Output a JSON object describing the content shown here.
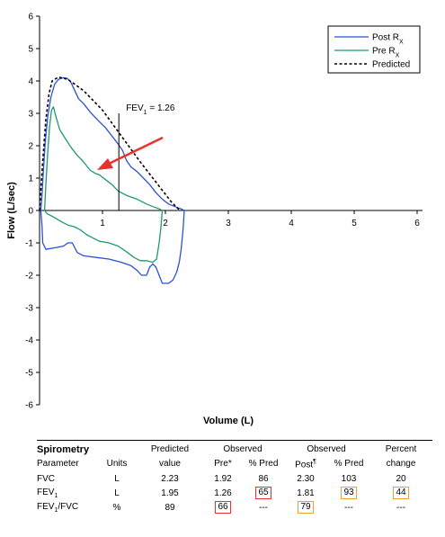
{
  "chart_data": {
    "type": "line",
    "title": "",
    "xlabel": "Volume (L)",
    "ylabel": "Flow (L/sec)",
    "xlim": [
      0,
      6
    ],
    "ylim": [
      -6,
      6
    ],
    "xticks": [
      "0",
      "1",
      "2",
      "3",
      "4",
      "5",
      "6"
    ],
    "yticks": [
      "6",
      "5",
      "4",
      "3",
      "2",
      "1",
      "0",
      "-1",
      "-2",
      "-3",
      "-4",
      "-5",
      "-6"
    ],
    "grid": false,
    "legend_position": "top-right",
    "series": [
      {
        "name": "Post Rx",
        "name_main": "Post R",
        "name_sub": "X",
        "color": "#2a52d6",
        "style": "solid",
        "points": [
          [
            0.02,
            0.0
          ],
          [
            0.04,
            0.5
          ],
          [
            0.06,
            1.2
          ],
          [
            0.09,
            2.1
          ],
          [
            0.13,
            2.9
          ],
          [
            0.18,
            3.5
          ],
          [
            0.24,
            3.9
          ],
          [
            0.3,
            4.05
          ],
          [
            0.38,
            4.1
          ],
          [
            0.44,
            4.08
          ],
          [
            0.5,
            3.95
          ],
          [
            0.56,
            3.7
          ],
          [
            0.62,
            3.45
          ],
          [
            0.7,
            3.3
          ],
          [
            0.8,
            3.05
          ],
          [
            0.92,
            2.8
          ],
          [
            1.05,
            2.55
          ],
          [
            1.15,
            2.3
          ],
          [
            1.25,
            2.05
          ],
          [
            1.32,
            1.85
          ],
          [
            1.38,
            1.55
          ],
          [
            1.45,
            1.35
          ],
          [
            1.55,
            1.2
          ],
          [
            1.65,
            1.0
          ],
          [
            1.75,
            0.8
          ],
          [
            1.85,
            0.55
          ],
          [
            1.95,
            0.35
          ],
          [
            2.05,
            0.2
          ],
          [
            2.15,
            0.12
          ],
          [
            2.25,
            0.05
          ],
          [
            2.3,
            0.0
          ],
          [
            2.28,
            -0.6
          ],
          [
            2.25,
            -1.2
          ],
          [
            2.22,
            -1.6
          ],
          [
            2.18,
            -1.9
          ],
          [
            2.12,
            -2.15
          ],
          [
            2.05,
            -2.25
          ],
          [
            1.95,
            -2.25
          ],
          [
            1.9,
            -2.0
          ],
          [
            1.85,
            -1.75
          ],
          [
            1.8,
            -1.65
          ],
          [
            1.75,
            -1.75
          ],
          [
            1.7,
            -2.0
          ],
          [
            1.62,
            -2.0
          ],
          [
            1.55,
            -1.85
          ],
          [
            1.45,
            -1.7
          ],
          [
            1.3,
            -1.6
          ],
          [
            1.1,
            -1.5
          ],
          [
            0.9,
            -1.45
          ],
          [
            0.7,
            -1.4
          ],
          [
            0.6,
            -1.3
          ],
          [
            0.52,
            -1.0
          ],
          [
            0.45,
            -1.0
          ],
          [
            0.38,
            -1.1
          ],
          [
            0.25,
            -1.15
          ],
          [
            0.1,
            -1.2
          ],
          [
            0.05,
            -1.0
          ],
          [
            0.04,
            -0.5
          ],
          [
            0.02,
            0.0
          ]
        ]
      },
      {
        "name": "Pre Rx",
        "name_main": "Pre R",
        "name_sub": "X",
        "color": "#1e9a6e",
        "style": "solid",
        "points": [
          [
            0.08,
            0.0
          ],
          [
            0.1,
            0.8
          ],
          [
            0.13,
            1.8
          ],
          [
            0.16,
            2.6
          ],
          [
            0.19,
            3.1
          ],
          [
            0.22,
            3.2
          ],
          [
            0.26,
            2.9
          ],
          [
            0.32,
            2.5
          ],
          [
            0.4,
            2.25
          ],
          [
            0.5,
            1.95
          ],
          [
            0.6,
            1.7
          ],
          [
            0.7,
            1.5
          ],
          [
            0.8,
            1.25
          ],
          [
            0.88,
            1.15
          ],
          [
            0.95,
            1.1
          ],
          [
            1.05,
            0.95
          ],
          [
            1.15,
            0.8
          ],
          [
            1.25,
            0.6
          ],
          [
            1.4,
            0.45
          ],
          [
            1.55,
            0.35
          ],
          [
            1.7,
            0.2
          ],
          [
            1.8,
            0.12
          ],
          [
            1.9,
            0.05
          ],
          [
            1.95,
            0.0
          ],
          [
            1.93,
            -0.5
          ],
          [
            1.9,
            -1.0
          ],
          [
            1.86,
            -1.5
          ],
          [
            1.8,
            -1.6
          ],
          [
            1.7,
            -1.55
          ],
          [
            1.6,
            -1.55
          ],
          [
            1.5,
            -1.45
          ],
          [
            1.4,
            -1.3
          ],
          [
            1.25,
            -1.1
          ],
          [
            1.1,
            -1.0
          ],
          [
            0.95,
            -0.95
          ],
          [
            0.85,
            -0.85
          ],
          [
            0.75,
            -0.75
          ],
          [
            0.65,
            -0.6
          ],
          [
            0.55,
            -0.5
          ],
          [
            0.45,
            -0.45
          ],
          [
            0.35,
            -0.35
          ],
          [
            0.22,
            -0.2
          ],
          [
            0.12,
            -0.1
          ],
          [
            0.08,
            0.0
          ]
        ]
      },
      {
        "name": "Predicted",
        "color": "#000000",
        "style": "dashed",
        "points": [
          [
            0.0,
            0.0
          ],
          [
            0.05,
            1.5
          ],
          [
            0.1,
            2.8
          ],
          [
            0.15,
            3.6
          ],
          [
            0.2,
            4.0
          ],
          [
            0.3,
            4.12
          ],
          [
            0.45,
            4.05
          ],
          [
            0.7,
            3.7
          ],
          [
            1.0,
            3.1
          ],
          [
            1.3,
            2.3
          ],
          [
            1.6,
            1.5
          ],
          [
            1.9,
            0.75
          ],
          [
            2.1,
            0.25
          ],
          [
            2.23,
            0.0
          ]
        ]
      }
    ],
    "annotations": [
      {
        "text_main": "FEV",
        "text_sub": "1",
        "text_tail": " = 1.26",
        "x": 1.26
      }
    ]
  },
  "table": {
    "title": "Spirometry",
    "headers": {
      "parameter": "Parameter",
      "units": "Units",
      "predicted_top": "Predicted",
      "predicted_bottom": "value",
      "observed_pre_top": "Observed",
      "pre": "Pre*",
      "pct_pred_1": "% Pred",
      "observed_post_top": "Observed",
      "post": "Post",
      "post_mark": "¶",
      "pct_pred_2": "% Pred",
      "percent_top": "Percent",
      "percent_bottom": "change"
    },
    "rows": [
      {
        "param_main": "FVC",
        "param_sub": "",
        "param_tail": "",
        "units": "L",
        "predicted": "2.23",
        "pre": "1.92",
        "pct1": "86",
        "post": "2.30",
        "pct2": "103",
        "change": "20"
      },
      {
        "param_main": "FEV",
        "param_sub": "1",
        "param_tail": "",
        "units": "L",
        "predicted": "1.95",
        "pre": "1.26",
        "pct1": "65",
        "post": "1.81",
        "pct2": "93",
        "change": "44"
      },
      {
        "param_main": "FEV",
        "param_sub": "1",
        "param_tail": "/FVC",
        "units": "%",
        "predicted": "89",
        "pre": "66",
        "pct1": "---",
        "post": "79",
        "pct2": "---",
        "change": "---"
      }
    ],
    "highlight_red": "#e8322b",
    "highlight_orange": "#f0a030"
  },
  "icons": {
    "arrow": "red-arrow-icon"
  }
}
